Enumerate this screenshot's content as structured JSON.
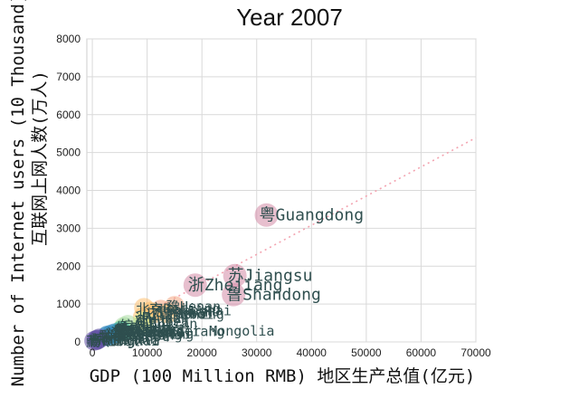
{
  "chart_data": {
    "type": "scatter",
    "title": "Year 2007",
    "xlabel": "GDP (100 Million RMB) 地区生产总值(亿元)",
    "ylabel_line1": "Number of Internet users (10 Thousand)",
    "ylabel_line2": "互联网上网人数(万人)",
    "xlim": [
      -1000,
      70000
    ],
    "ylim": [
      0,
      8000
    ],
    "xticks": [
      0,
      10000,
      20000,
      30000,
      40000,
      50000,
      60000,
      70000
    ],
    "yticks": [
      0,
      1000,
      2000,
      3000,
      4000,
      5000,
      6000,
      7000,
      8000
    ],
    "grid": true,
    "trendline": {
      "slope": 0.077,
      "intercept": 0,
      "color": "#f3a3b0"
    },
    "points": [
      {
        "x": 31777,
        "y": 3350,
        "label": "粤Guangdong",
        "color": "#d48aa6"
      },
      {
        "x": 26018,
        "y": 1750,
        "label": "苏Jiangsu",
        "color": "#d48aa6"
      },
      {
        "x": 25777,
        "y": 1250,
        "label": "鲁Shandong",
        "color": "#d48aa6"
      },
      {
        "x": 18780,
        "y": 1500,
        "label": "浙Zhejiang",
        "color": "#d48aa6"
      },
      {
        "x": 15012,
        "y": 950,
        "label": "豫Henan",
        "color": "#f4a582"
      },
      {
        "x": 12494,
        "y": 850,
        "label": "沪Shanghai",
        "color": "#f4a582"
      },
      {
        "x": 13709,
        "y": 750,
        "label": "冀Hebei",
        "color": "#fdbf6f"
      },
      {
        "x": 9439,
        "y": 900,
        "label": "北京Beijing",
        "color": "#fdbf6f"
      },
      {
        "x": 10562,
        "y": 800,
        "label": "川Sichuan",
        "color": "#fdbf6f"
      },
      {
        "x": 11164,
        "y": 750,
        "label": "辽Liaoning",
        "color": "#fdbf6f"
      },
      {
        "x": 9200,
        "y": 650,
        "label": "湘Hunan",
        "color": "#fdbf6f"
      },
      {
        "x": 9330,
        "y": 550,
        "label": "鄂Hubei",
        "color": "#e6f598"
      },
      {
        "x": 9248,
        "y": 500,
        "label": "闽Fujian",
        "color": "#e6f598"
      },
      {
        "x": 6469,
        "y": 450,
        "label": "皖Anhui",
        "color": "#abdda4"
      },
      {
        "x": 5762,
        "y": 400,
        "label": "桂Guangxi",
        "color": "#abdda4"
      },
      {
        "x": 5733,
        "y": 350,
        "label": "晋Shanxi",
        "color": "#abdda4"
      },
      {
        "x": 5500,
        "y": 330,
        "label": "赣Jiangxi",
        "color": "#abdda4"
      },
      {
        "x": 6426,
        "y": 310,
        "label": "内蒙古Inner Mongolia",
        "color": "#abdda4"
      },
      {
        "x": 5284,
        "y": 300,
        "label": "黑Heilongjiang",
        "color": "#66c2a5"
      },
      {
        "x": 5252,
        "y": 280,
        "label": "津Tianjin",
        "color": "#66c2a5"
      },
      {
        "x": 5466,
        "y": 290,
        "label": "陕Shaanxi",
        "color": "#66c2a5"
      },
      {
        "x": 5226,
        "y": 270,
        "label": "吉Jilin",
        "color": "#66c2a5"
      },
      {
        "x": 4772,
        "y": 250,
        "label": "滇Yunnan",
        "color": "#66c2a5"
      },
      {
        "x": 4122,
        "y": 230,
        "label": "渝Chongqing",
        "color": "#3288bd"
      },
      {
        "x": 3523,
        "y": 200,
        "label": "新Xinjiang",
        "color": "#3288bd"
      },
      {
        "x": 2741,
        "y": 170,
        "label": "黔Guizhou",
        "color": "#3288bd"
      },
      {
        "x": 2702,
        "y": 150,
        "label": "甘Gansu",
        "color": "#3288bd"
      },
      {
        "x": 1254,
        "y": 90,
        "label": "琼Hainan",
        "color": "#5e4fa2"
      },
      {
        "x": 919,
        "y": 60,
        "label": "宁Ningxia",
        "color": "#5e4fa2"
      },
      {
        "x": 797,
        "y": 50,
        "label": "青Qinghai",
        "color": "#5e4fa2"
      },
      {
        "x": 342,
        "y": 30,
        "label": "藏Tibet",
        "color": "#5e4fa2"
      }
    ]
  }
}
